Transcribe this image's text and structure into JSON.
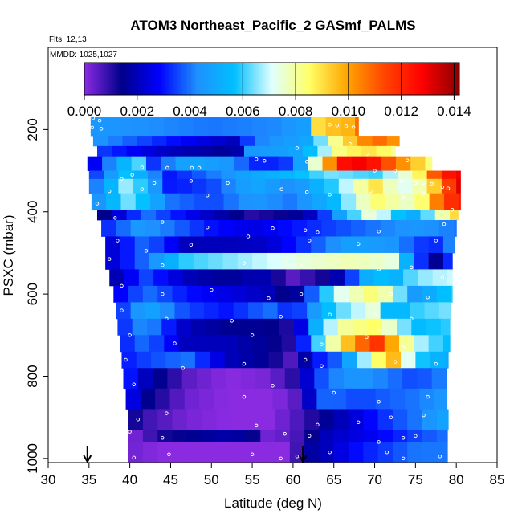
{
  "chart_data": {
    "type": "heatmap",
    "title": "ATOM3 Northeast_Pacific_2 GASmf_PALMS",
    "subtitles": [
      "Flts: 12,13",
      "MMDD: 1025,1027"
    ],
    "xlabel": "Latitude (deg N)",
    "ylabel": "PSXC (mbar)",
    "xlim": [
      30,
      85
    ],
    "ylim": [
      1010,
      0
    ],
    "x_ticks": [
      "30",
      "35",
      "40",
      "45",
      "50",
      "55",
      "60",
      "65",
      "70",
      "75",
      "80",
      "85"
    ],
    "y_ticks": [
      "200",
      "400",
      "600",
      "800",
      "1000"
    ],
    "colorbar": {
      "range": [
        0,
        0.0142
      ],
      "ticks": [
        "0.000",
        "0.002",
        "0.004",
        "0.006",
        "0.008",
        "0.010",
        "0.012",
        "0.014"
      ],
      "colors": [
        "#8a2be2",
        "#00008b",
        "#0000ff",
        "#1e90ff",
        "#00bfff",
        "#e0ffff",
        "#ffff66",
        "#ffa500",
        "#ff4500",
        "#ff0000",
        "#8b0000"
      ]
    },
    "markers_lat": [
      34.8,
      61.2
    ],
    "layers": [
      {
        "p": [
          170,
          215
        ],
        "xmin": 35.2,
        "xmax": 68.0,
        "xs": [
          35.2,
          50,
          58,
          62,
          64,
          65.5,
          66.5,
          68.0
        ],
        "vs": [
          0.0045,
          0.004,
          0.0042,
          0.0048,
          0.0125,
          0.0075,
          0.0095,
          0.011
        ]
      },
      {
        "p": [
          215,
          240
        ],
        "xmin": 35.5,
        "xmax": 73.0,
        "xs": [
          35.5,
          45,
          53,
          55,
          62,
          65,
          68,
          70,
          73.0
        ],
        "vs": [
          0.0045,
          0.003,
          0.002,
          0.004,
          0.005,
          0.008,
          0.01,
          0.011,
          0.01
        ]
      },
      {
        "p": [
          240,
          265
        ],
        "xmin": 36.0,
        "xmax": 72.5,
        "xs": [
          36,
          45,
          53,
          54,
          60,
          63,
          66,
          70,
          72.5
        ],
        "vs": [
          0.0035,
          0.002,
          0.0015,
          0.0045,
          0.0048,
          0.006,
          0.0085,
          0.009,
          0.008
        ]
      },
      {
        "p": [
          265,
          300
        ],
        "xmin": 34.8,
        "xmax": 77.0,
        "xs": [
          34.8,
          38,
          41,
          42,
          47,
          52,
          56,
          60,
          63,
          66,
          69,
          72,
          75,
          77
        ],
        "vs": [
          0.002,
          0.0045,
          0.0065,
          0.003,
          0.005,
          0.0045,
          0.003,
          0.0035,
          0.008,
          0.0125,
          0.013,
          0.011,
          0.0095,
          0.008
        ]
      },
      {
        "p": [
          300,
          320
        ],
        "xmin": 35.0,
        "xmax": 80.5,
        "xs": [
          35,
          40,
          45,
          50,
          55,
          60,
          65,
          70,
          75,
          78,
          80.5
        ],
        "vs": [
          0.003,
          0.006,
          0.003,
          0.004,
          0.005,
          0.0055,
          0.0065,
          0.006,
          0.008,
          0.012,
          0.013
        ]
      },
      {
        "p": [
          320,
          355
        ],
        "xmin": 35.0,
        "xmax": 80.5,
        "xs": [
          35,
          40,
          45,
          50,
          55,
          60,
          65,
          70,
          73,
          76,
          78,
          80.5
        ],
        "vs": [
          0.0035,
          0.007,
          0.003,
          0.0035,
          0.005,
          0.0042,
          0.006,
          0.009,
          0.007,
          0.008,
          0.01,
          0.0135
        ]
      },
      {
        "p": [
          355,
          395
        ],
        "xmin": 35.3,
        "xmax": 80.5,
        "xs": [
          35.3,
          40,
          45,
          50,
          55,
          60,
          65,
          70,
          72,
          75,
          78,
          80.5
        ],
        "vs": [
          0.004,
          0.0065,
          0.004,
          0.0035,
          0.0045,
          0.004,
          0.0055,
          0.0085,
          0.008,
          0.0075,
          0.011,
          0.0125
        ]
      },
      {
        "p": [
          395,
          420
        ],
        "xmin": 36.0,
        "xmax": 80.2,
        "xs": [
          36,
          42,
          48,
          55,
          60,
          62,
          66,
          70,
          72,
          75,
          80.2
        ],
        "vs": [
          0.001,
          0.004,
          0.0025,
          0.001,
          0.0015,
          0.002,
          0.005,
          0.008,
          0.006,
          0.005,
          0.0095
        ]
      },
      {
        "p": [
          420,
          460
        ],
        "xmin": 36.5,
        "xmax": 80.0,
        "xs": [
          36.5,
          41,
          45,
          50,
          55,
          60,
          65,
          70,
          75,
          80
        ],
        "vs": [
          0.003,
          0.0045,
          0.004,
          0.003,
          0.0025,
          0.003,
          0.0035,
          0.004,
          0.0045,
          0.004
        ]
      },
      {
        "p": [
          460,
          500
        ],
        "xmin": 37.0,
        "xmax": 79.8,
        "xs": [
          37,
          42,
          47,
          52,
          57,
          62,
          67,
          72,
          77,
          79.8
        ],
        "vs": [
          0.002,
          0.004,
          0.002,
          0.002,
          0.0022,
          0.0035,
          0.0048,
          0.0045,
          0.003,
          0.0045
        ]
      },
      {
        "p": [
          500,
          540
        ],
        "xmin": 37.0,
        "xmax": 79.5,
        "xs": [
          37,
          42,
          47,
          52,
          57,
          62,
          67,
          72,
          75,
          78,
          79.5
        ],
        "vs": [
          0.002,
          0.004,
          0.006,
          0.0065,
          0.007,
          0.0075,
          0.0078,
          0.0075,
          0.004,
          0.001,
          0.0045
        ]
      },
      {
        "p": [
          540,
          580
        ],
        "xmin": 37.5,
        "xmax": 79.5,
        "xs": [
          37.5,
          42,
          47,
          52,
          56,
          60,
          65,
          70,
          72,
          75,
          79.5
        ],
        "vs": [
          0.0015,
          0.0035,
          0.002,
          0.0015,
          0.002,
          0.0005,
          0.0015,
          0.006,
          0.005,
          0.0065,
          0.007
        ]
      },
      {
        "p": [
          580,
          620
        ],
        "xmin": 38.0,
        "xmax": 79.5,
        "xs": [
          38,
          42,
          47,
          52,
          57,
          60,
          65,
          70,
          72,
          75,
          79.5
        ],
        "vs": [
          0.0025,
          0.004,
          0.003,
          0.0025,
          0.002,
          0.001,
          0.007,
          0.0085,
          0.0075,
          0.0045,
          0.006
        ]
      },
      {
        "p": [
          620,
          660
        ],
        "xmin": 38.3,
        "xmax": 79.3,
        "xs": [
          38.3,
          42,
          47,
          52,
          57,
          60,
          65,
          70,
          72,
          75,
          79.3
        ],
        "vs": [
          0.003,
          0.005,
          0.0035,
          0.003,
          0.004,
          0.003,
          0.006,
          0.0075,
          0.005,
          0.006,
          0.0065
        ]
      },
      {
        "p": [
          660,
          700
        ],
        "xmin": 38.5,
        "xmax": 79.2,
        "xs": [
          38.5,
          42,
          47,
          52,
          57,
          60,
          63,
          66,
          70,
          72,
          75,
          79.2
        ],
        "vs": [
          0.003,
          0.0045,
          0.002,
          0.0015,
          0.0015,
          0.001,
          0.0055,
          0.008,
          0.0085,
          0.0075,
          0.0055,
          0.006
        ]
      },
      {
        "p": [
          700,
          740
        ],
        "xmin": 38.8,
        "xmax": 79.2,
        "xs": [
          38.8,
          42,
          47,
          52,
          57,
          60,
          63,
          66,
          70,
          72,
          75,
          79.2
        ],
        "vs": [
          0.003,
          0.004,
          0.002,
          0.002,
          0.0015,
          0.001,
          0.006,
          0.009,
          0.012,
          0.01,
          0.007,
          0.0055
        ]
      },
      {
        "p": [
          740,
          780
        ],
        "xmin": 39.0,
        "xmax": 79.0,
        "xs": [
          39,
          42,
          47,
          52,
          57,
          60,
          63,
          66,
          70,
          72,
          75,
          79
        ],
        "vs": [
          0.003,
          0.0035,
          0.004,
          0.002,
          0.0015,
          0.0005,
          0.003,
          0.004,
          0.008,
          0.01,
          0.006,
          0.005
        ]
      },
      {
        "p": [
          780,
          830
        ],
        "xmin": 39.2,
        "xmax": 78.8,
        "xs": [
          39.2,
          42,
          47,
          52,
          57,
          60,
          64,
          68,
          72,
          75,
          78.8
        ],
        "vs": [
          0.0035,
          0.002,
          0.0005,
          0.0,
          0.0002,
          0.001,
          0.004,
          0.0045,
          0.004,
          0.0035,
          0.0042
        ]
      },
      {
        "p": [
          830,
          880
        ],
        "xmin": 39.5,
        "xmax": 78.8,
        "xs": [
          39.5,
          42,
          47,
          52,
          57,
          60,
          64,
          68,
          72,
          75,
          78.8
        ],
        "vs": [
          0.003,
          0.0015,
          0.0003,
          0.0,
          0.0,
          0.0003,
          0.004,
          0.0035,
          0.0038,
          0.004,
          0.0045
        ]
      },
      {
        "p": [
          880,
          930
        ],
        "xmin": 39.8,
        "xmax": 79.0,
        "xs": [
          39.8,
          42,
          47,
          52,
          57,
          60,
          64,
          68,
          72,
          75,
          79
        ],
        "vs": [
          0.0015,
          0.0008,
          0.0002,
          0.0,
          0.0,
          0.0005,
          0.0015,
          0.0025,
          0.0035,
          0.004,
          0.005
        ]
      },
      {
        "p": [
          930,
          960
        ],
        "xmin": 39.8,
        "xmax": 78.9,
        "xs": [
          39.8,
          44,
          48,
          52,
          55,
          56,
          60,
          64,
          68,
          72,
          75,
          78.9
        ],
        "vs": [
          0.0,
          0.0012,
          0.0015,
          0.0018,
          0.0015,
          0.0002,
          0.0005,
          0.002,
          0.0025,
          0.003,
          0.0035,
          0.004
        ]
      },
      {
        "p": [
          960,
          1008
        ],
        "xmin": 39.8,
        "xmax": 78.9,
        "xs": [
          39.8,
          44,
          48,
          52,
          56,
          60,
          61,
          64,
          68,
          72,
          75,
          78.9
        ],
        "vs": [
          0.0003,
          0.0,
          0.0,
          0.0,
          0.0,
          0.0,
          0.0015,
          0.002,
          0.003,
          0.0035,
          0.004,
          0.004
        ]
      }
    ],
    "points": [
      [
        35.5,
        172
      ],
      [
        36.3,
        178
      ],
      [
        35.4,
        195
      ],
      [
        36.5,
        198
      ],
      [
        41.5,
        292
      ],
      [
        44.6,
        293
      ],
      [
        47.6,
        293
      ],
      [
        48.5,
        293
      ],
      [
        55.5,
        272
      ],
      [
        56.5,
        276
      ],
      [
        60.5,
        245
      ],
      [
        61.7,
        278
      ],
      [
        64.5,
        188
      ],
      [
        65.4,
        190
      ],
      [
        66.5,
        192
      ],
      [
        67.4,
        194
      ],
      [
        68.5,
        193
      ],
      [
        67.0,
        235
      ],
      [
        69.0,
        260
      ],
      [
        74.0,
        275
      ],
      [
        70.0,
        300
      ],
      [
        73.3,
        325
      ],
      [
        76.0,
        330
      ],
      [
        77.0,
        332
      ],
      [
        78.3,
        340
      ],
      [
        79.0,
        343
      ],
      [
        72.5,
        300
      ],
      [
        75.0,
        330
      ],
      [
        40.3,
        310
      ],
      [
        39.0,
        320
      ],
      [
        43.0,
        330
      ],
      [
        47.5,
        325
      ],
      [
        52.0,
        330
      ],
      [
        37.5,
        350
      ],
      [
        41.5,
        345
      ],
      [
        49.5,
        360
      ],
      [
        58.6,
        345
      ],
      [
        61.7,
        352
      ],
      [
        64.5,
        358
      ],
      [
        69.5,
        350
      ],
      [
        73.5,
        365
      ],
      [
        76.0,
        355
      ],
      [
        79.5,
        395
      ],
      [
        36.0,
        380
      ],
      [
        38.2,
        415
      ],
      [
        44.0,
        425
      ],
      [
        49.5,
        438
      ],
      [
        57.5,
        440
      ],
      [
        61.5,
        445
      ],
      [
        63.0,
        450
      ],
      [
        70.5,
        448
      ],
      [
        78.5,
        430
      ],
      [
        38.5,
        470
      ],
      [
        42.0,
        495
      ],
      [
        47.5,
        480
      ],
      [
        54.5,
        460
      ],
      [
        62.0,
        470
      ],
      [
        68.0,
        478
      ],
      [
        77.5,
        470
      ],
      [
        37.5,
        515
      ],
      [
        44.0,
        530
      ],
      [
        54.0,
        525
      ],
      [
        61.0,
        528
      ],
      [
        70.5,
        540
      ],
      [
        74.5,
        535
      ],
      [
        78.3,
        560
      ],
      [
        39.0,
        580
      ],
      [
        44.0,
        600
      ],
      [
        50.0,
        590
      ],
      [
        57.0,
        610
      ],
      [
        61.0,
        600
      ],
      [
        66.5,
        615
      ],
      [
        72.0,
        600
      ],
      [
        76.5,
        608
      ],
      [
        39.0,
        640
      ],
      [
        44.5,
        660
      ],
      [
        52.5,
        665
      ],
      [
        58.5,
        655
      ],
      [
        64.5,
        650
      ],
      [
        70.0,
        650
      ],
      [
        74.5,
        660
      ],
      [
        40.0,
        700
      ],
      [
        45.5,
        720
      ],
      [
        55.0,
        700
      ],
      [
        63.5,
        722
      ],
      [
        69.0,
        705
      ],
      [
        70.5,
        690
      ],
      [
        73.5,
        730
      ],
      [
        39.5,
        760
      ],
      [
        46.5,
        780
      ],
      [
        54.0,
        770
      ],
      [
        61.5,
        760
      ],
      [
        63.5,
        775
      ],
      [
        72.5,
        765
      ],
      [
        77.5,
        770
      ],
      [
        40.5,
        820
      ],
      [
        54.0,
        850
      ],
      [
        57.5,
        823
      ],
      [
        65.0,
        840
      ],
      [
        70.5,
        862
      ],
      [
        76.5,
        850
      ],
      [
        41.0,
        905
      ],
      [
        44.5,
        890
      ],
      [
        55.5,
        920
      ],
      [
        63.0,
        918
      ],
      [
        68.0,
        912
      ],
      [
        72.0,
        900
      ],
      [
        76.0,
        895
      ],
      [
        40.0,
        935
      ],
      [
        44.0,
        950
      ],
      [
        59.0,
        940
      ],
      [
        62.0,
        945
      ],
      [
        70.5,
        960
      ],
      [
        73.5,
        950
      ],
      [
        75.0,
        945
      ],
      [
        40.5,
        998
      ],
      [
        44.8,
        990
      ],
      [
        55.0,
        990
      ],
      [
        58.5,
        1000
      ],
      [
        60.5,
        995
      ],
      [
        64.5,
        985
      ],
      [
        71.5,
        985
      ],
      [
        73.5,
        1000
      ],
      [
        78.0,
        995
      ]
    ]
  }
}
